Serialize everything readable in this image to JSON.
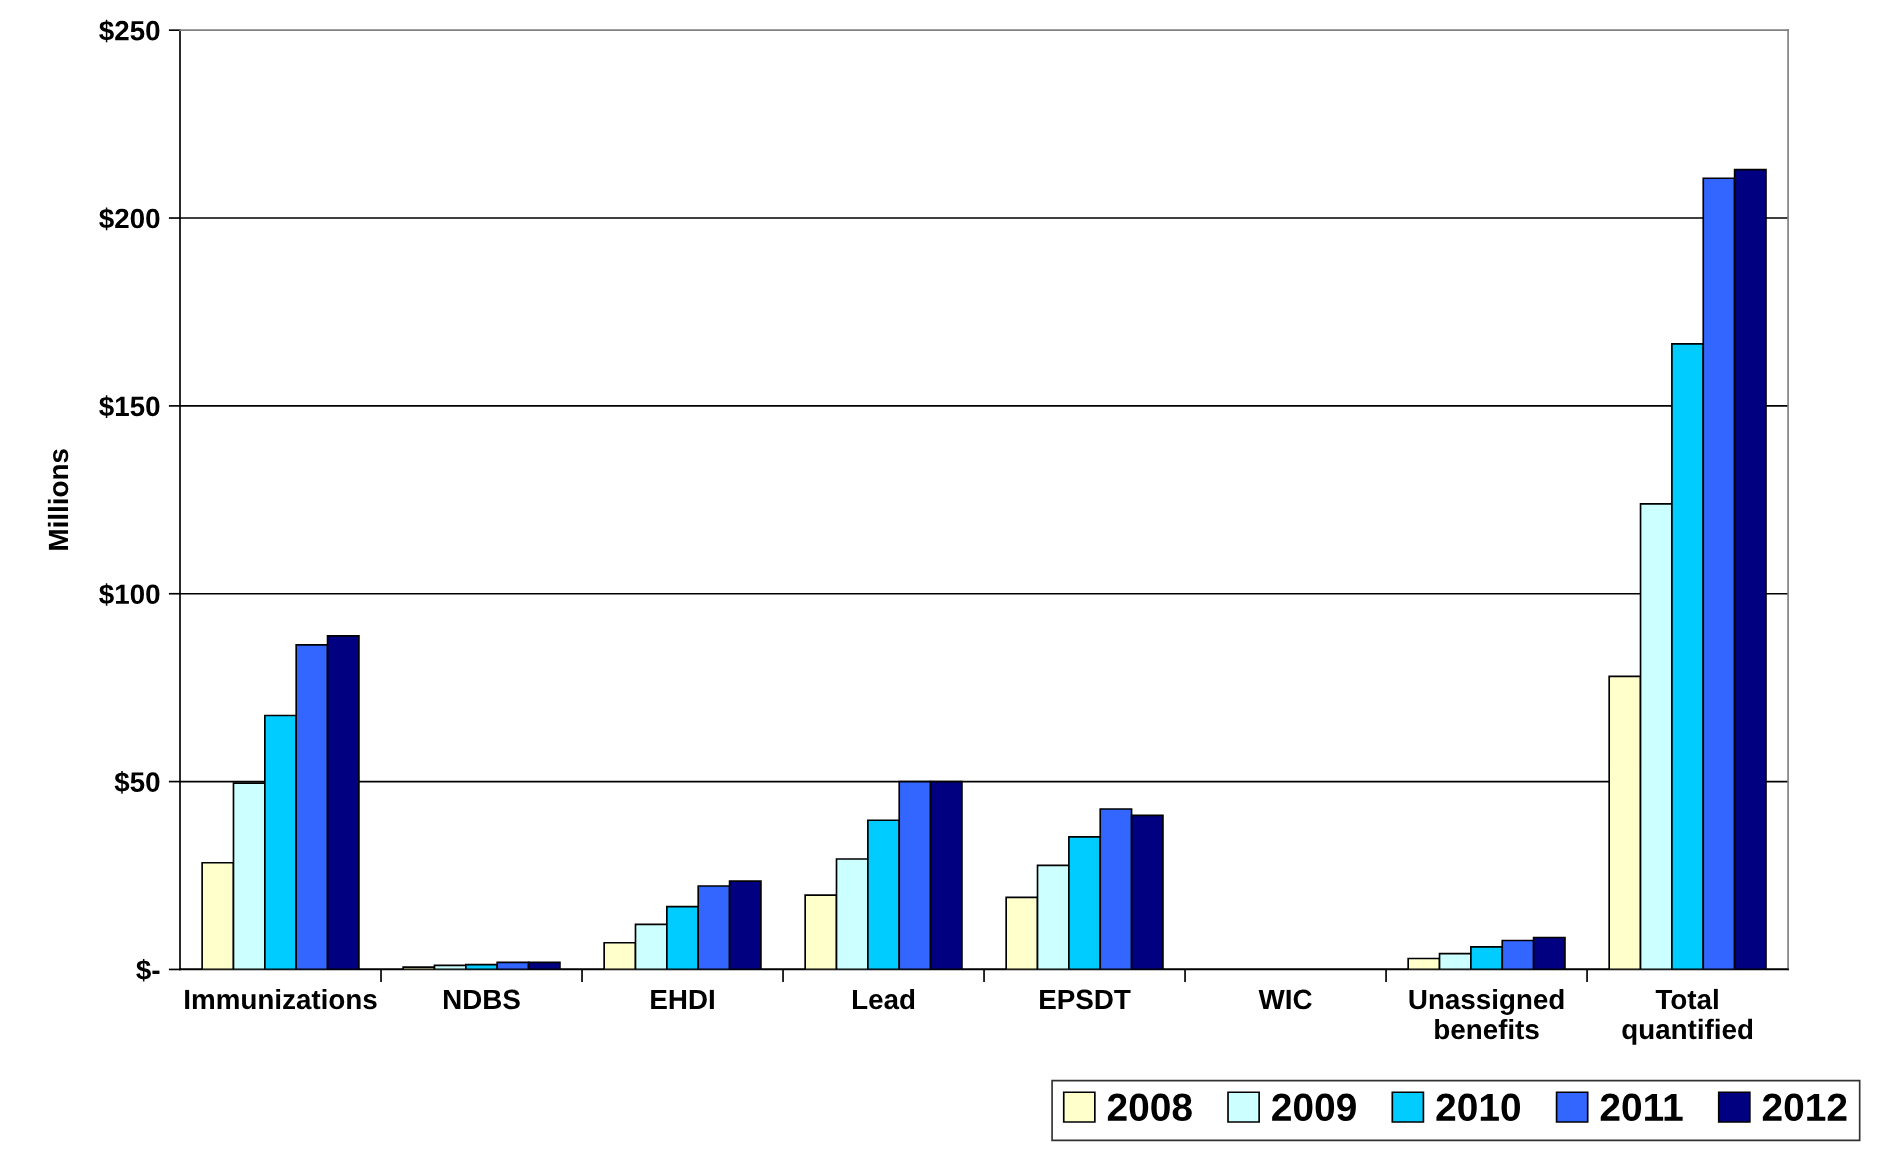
{
  "chart_data": {
    "type": "bar",
    "ylabel": "Millions",
    "categories": [
      "Immunizations",
      "NDBS",
      "EHDI",
      "Lead",
      "EPSDT",
      "WIC",
      "Unassigned benefits",
      "Total quantified"
    ],
    "series": [
      {
        "name": "2008",
        "color": "#ffffcc",
        "values": [
          28.4,
          0.6,
          7.1,
          19.8,
          19.2,
          null,
          2.9,
          78.0
        ]
      },
      {
        "name": "2009",
        "color": "#ccffff",
        "values": [
          49.6,
          1.1,
          12.0,
          29.4,
          27.7,
          null,
          4.2,
          123.9
        ]
      },
      {
        "name": "2010",
        "color": "#00ccff",
        "values": [
          67.6,
          1.3,
          16.7,
          39.7,
          35.3,
          null,
          6.0,
          166.5
        ]
      },
      {
        "name": "2011",
        "color": "#3366ff",
        "values": [
          86.4,
          1.9,
          22.2,
          50.0,
          42.7,
          null,
          7.7,
          210.6
        ]
      },
      {
        "name": "2012",
        "color": "#000080",
        "values": [
          88.8,
          1.9,
          23.5,
          50.0,
          41.0,
          null,
          8.5,
          212.9
        ]
      }
    ],
    "ylim": [
      0,
      250
    ],
    "yticks": [
      {
        "value": 0,
        "label": "$-"
      },
      {
        "value": 50,
        "label": "$50"
      },
      {
        "value": 100,
        "label": "$100"
      },
      {
        "value": 150,
        "label": "$150"
      },
      {
        "value": 200,
        "label": "$200"
      },
      {
        "value": 250,
        "label": "$250"
      }
    ],
    "grid": "y",
    "legend": "bottom right"
  }
}
